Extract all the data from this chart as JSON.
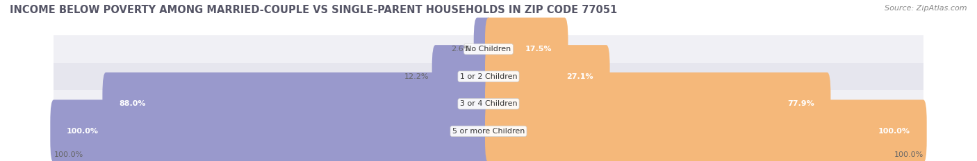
{
  "title": "INCOME BELOW POVERTY AMONG MARRIED-COUPLE VS SINGLE-PARENT HOUSEHOLDS IN ZIP CODE 77051",
  "source": "Source: ZipAtlas.com",
  "categories": [
    "No Children",
    "1 or 2 Children",
    "3 or 4 Children",
    "5 or more Children"
  ],
  "married_values": [
    2.6,
    12.2,
    88.0,
    100.0
  ],
  "single_values": [
    17.5,
    27.1,
    77.9,
    100.0
  ],
  "married_color": "#9999cc",
  "single_color": "#f5b87a",
  "row_bg_colors": [
    "#f0f0f5",
    "#e6e6ee"
  ],
  "max_value": 100.0,
  "title_fontsize": 10.5,
  "label_fontsize": 8,
  "legend_fontsize": 8.5,
  "source_fontsize": 8,
  "title_color": "#555566",
  "label_color_dark": "#ffffff",
  "label_color_light": "#444444",
  "axis_label_color": "#666666"
}
